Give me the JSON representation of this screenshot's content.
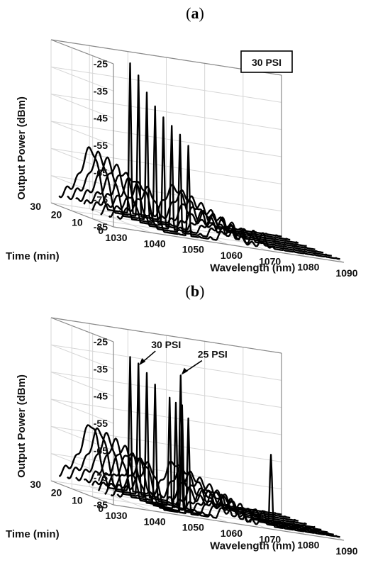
{
  "chart_data": [
    {
      "panel_label": "a",
      "type": "line",
      "projection": "3d-waterfall",
      "ylabel": "Output Power (dBm)",
      "xlabel": "Wavelength (nm)",
      "zlabel": "Time (min)",
      "annotation_box": "30 PSI",
      "yticks": [
        "-25",
        "-35",
        "-45",
        "-55",
        "-65",
        "-75",
        "-85"
      ],
      "xticks": [
        "1030",
        "1040",
        "1050",
        "1060",
        "1070",
        "1080",
        "1090"
      ],
      "zticks": [
        "0",
        "10",
        "20",
        "30"
      ],
      "xlim": [
        1030,
        1090
      ],
      "ylim": [
        -85,
        -25
      ],
      "zlim": [
        0,
        30
      ],
      "grid": true,
      "series": [
        {
          "time": 0,
          "peak_nm": 1049.5,
          "peak_dbm": -52,
          "lobe_dbm": -73
        },
        {
          "time": 4,
          "peak_nm": 1049.5,
          "peak_dbm": -49,
          "lobe_dbm": -72
        },
        {
          "time": 8,
          "peak_nm": 1049.5,
          "peak_dbm": -46,
          "lobe_dbm": -71
        },
        {
          "time": 12,
          "peak_nm": 1049.5,
          "peak_dbm": -43,
          "lobe_dbm": -70
        },
        {
          "time": 16,
          "peak_nm": 1049.5,
          "peak_dbm": -40,
          "lobe_dbm": -69
        },
        {
          "time": 20,
          "peak_nm": 1049.5,
          "peak_dbm": -37,
          "lobe_dbm": -68
        },
        {
          "time": 24,
          "peak_nm": 1049.5,
          "peak_dbm": -33,
          "lobe_dbm": -67
        },
        {
          "time": 28,
          "peak_nm": 1049.5,
          "peak_dbm": -30,
          "lobe_dbm": -66
        }
      ]
    },
    {
      "panel_label": "b",
      "type": "line",
      "projection": "3d-waterfall",
      "ylabel": "Output Power (dBm)",
      "xlabel": "Wavelength (nm)",
      "zlabel": "Time (min)",
      "annotations": [
        {
          "text": "30 PSI",
          "at_series": 7
        },
        {
          "text": "25 PSI",
          "at_series": 4
        }
      ],
      "yticks": [
        "-25",
        "-35",
        "-45",
        "-55",
        "-65",
        "-75",
        "-85"
      ],
      "xticks": [
        "1030",
        "1040",
        "1050",
        "1060",
        "1070",
        "1080",
        "1090"
      ],
      "zticks": [
        "0",
        "10",
        "20",
        "30"
      ],
      "xlim": [
        1030,
        1090
      ],
      "ylim": [
        -85,
        -25
      ],
      "zlim": [
        0,
        30
      ],
      "grid": true,
      "series": [
        {
          "time": 0,
          "peak_nm": 1049.5,
          "peak_dbm": -50,
          "lobe_dbm": -72,
          "peak2_nm": 1071,
          "peak2_dbm": -58
        },
        {
          "time": 3,
          "peak_nm": 1049.5,
          "peak_dbm": -46,
          "lobe_dbm": -71
        },
        {
          "time": 6,
          "peak_nm": 1049.5,
          "peak_dbm": -45,
          "lobe_dbm": -70
        },
        {
          "time": 9,
          "peak_nm": 1049.5,
          "peak_dbm": -43,
          "lobe_dbm": -70
        },
        {
          "time": 12,
          "peak_nm": 1054,
          "peak_dbm": -36,
          "lobe_dbm": -69
        },
        {
          "time": 16,
          "peak_nm": 1049.5,
          "peak_dbm": -41,
          "lobe_dbm": -68
        },
        {
          "time": 20,
          "peak_nm": 1049.5,
          "peak_dbm": -39,
          "lobe_dbm": -67
        },
        {
          "time": 24,
          "peak_nm": 1049.5,
          "peak_dbm": -37,
          "lobe_dbm": -66
        },
        {
          "time": 28,
          "peak_nm": 1049.5,
          "peak_dbm": -35,
          "lobe_dbm": -65
        }
      ]
    }
  ]
}
